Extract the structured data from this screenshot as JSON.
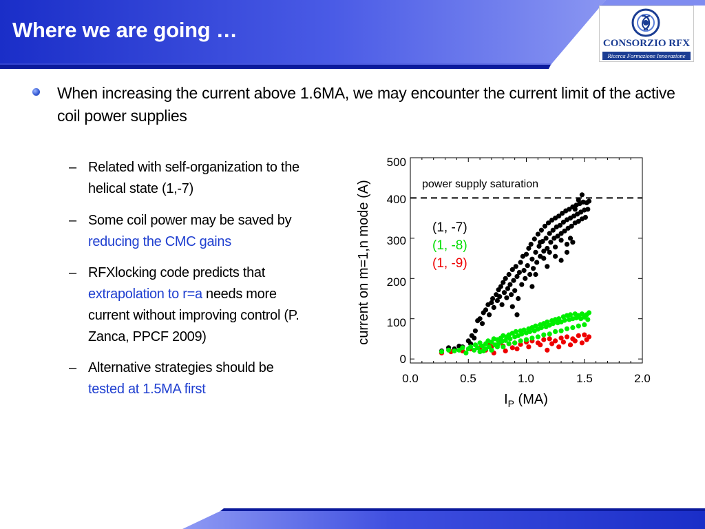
{
  "header": {
    "title": "Where we are going …",
    "logo": {
      "name": "CONSORZIO RFX",
      "tagline": "Ricerca Formazione Innovazione",
      "emblem_icon": "rfx-emblem-icon",
      "emblem_color": "#1b3d93"
    },
    "bar_colors": {
      "dark": "#1a2ec8",
      "light": "#7a86f0",
      "underline": "#0b1a9c"
    }
  },
  "content": {
    "main_bullet": "When increasing the current above 1.6MA, we may encounter the current limit of the active coil power supplies",
    "sub_bullets": [
      {
        "dash": "–",
        "segments": [
          {
            "text": "Related with self-organization to the helical state (1,-7)",
            "highlight": false
          }
        ]
      },
      {
        "dash": "–",
        "segments": [
          {
            "text": "Some coil power may be saved by ",
            "highlight": false
          },
          {
            "text": "reducing the CMC gains",
            "highlight": true
          }
        ]
      },
      {
        "dash": "–",
        "segments": [
          {
            "text": "RFXlocking code predicts that ",
            "highlight": false
          },
          {
            "text": "extrapolation to r=a",
            "highlight": true
          },
          {
            "text": " needs more current without improving control (P. Zanca, PPCF 2009)",
            "highlight": false
          }
        ]
      },
      {
        "dash": "–",
        "segments": [
          {
            "text": "Alternative strategies should be ",
            "highlight": false
          },
          {
            "text": "tested at 1.5MA first",
            "highlight": true
          }
        ]
      }
    ],
    "highlight_color": "#1f3fd0"
  },
  "chart_data": {
    "type": "scatter",
    "xlabel": "IP (MA)",
    "xlabel_main": "I",
    "xlabel_sub": "P",
    "xlabel_unit": " (MA)",
    "ylabel": "current on m=1,n mode (A)",
    "xlim": [
      0.0,
      2.0
    ],
    "ylim": [
      -10,
      500
    ],
    "x_ticks": [
      0.0,
      0.5,
      1.0,
      1.5,
      2.0
    ],
    "x_tick_labels": [
      "0.0",
      "0.5",
      "1.0",
      "1.5",
      "2.0"
    ],
    "y_ticks": [
      0,
      100,
      200,
      300,
      400,
      500
    ],
    "y_tick_labels": [
      "0",
      "100",
      "200",
      "300",
      "400",
      "500"
    ],
    "annotation": {
      "text": "power supply saturation",
      "y": 400,
      "line_style": "dashed"
    },
    "legend_placement": "upper-left",
    "series": [
      {
        "name": "(1, -7)",
        "color": "#000000",
        "points": [
          [
            0.27,
            20
          ],
          [
            0.33,
            28
          ],
          [
            0.38,
            25
          ],
          [
            0.42,
            32
          ],
          [
            0.45,
            30
          ],
          [
            0.5,
            45
          ],
          [
            0.52,
            38
          ],
          [
            0.53,
            58
          ],
          [
            0.55,
            52
          ],
          [
            0.56,
            70
          ],
          [
            0.58,
            95
          ],
          [
            0.6,
            100
          ],
          [
            0.62,
            88
          ],
          [
            0.63,
            115
          ],
          [
            0.65,
            122
          ],
          [
            0.67,
            135
          ],
          [
            0.68,
            110
          ],
          [
            0.7,
            140
          ],
          [
            0.71,
            150
          ],
          [
            0.72,
            128
          ],
          [
            0.74,
            160
          ],
          [
            0.75,
            145
          ],
          [
            0.76,
            172
          ],
          [
            0.77,
            155
          ],
          [
            0.78,
            180
          ],
          [
            0.79,
            135
          ],
          [
            0.8,
            190
          ],
          [
            0.81,
            165
          ],
          [
            0.82,
            200
          ],
          [
            0.83,
            152
          ],
          [
            0.84,
            175
          ],
          [
            0.85,
            210
          ],
          [
            0.86,
            185
          ],
          [
            0.87,
            160
          ],
          [
            0.88,
            222
          ],
          [
            0.89,
            195
          ],
          [
            0.9,
            170
          ],
          [
            0.91,
            230
          ],
          [
            0.92,
            205
          ],
          [
            0.93,
            150
          ],
          [
            0.94,
            215
          ],
          [
            0.95,
            240
          ],
          [
            0.96,
            185
          ],
          [
            0.97,
            255
          ],
          [
            0.98,
            220
          ],
          [
            0.99,
            200
          ],
          [
            1.0,
            260
          ],
          [
            1.01,
            232
          ],
          [
            1.02,
            275
          ],
          [
            1.03,
            210
          ],
          [
            1.04,
            285
          ],
          [
            1.05,
            248
          ],
          [
            1.06,
            225
          ],
          [
            1.07,
            298
          ],
          [
            1.08,
            265
          ],
          [
            1.09,
            240
          ],
          [
            1.1,
            310
          ],
          [
            1.11,
            280
          ],
          [
            1.12,
            255
          ],
          [
            1.13,
            320
          ],
          [
            1.14,
            292
          ],
          [
            1.15,
            268
          ],
          [
            1.16,
            330
          ],
          [
            1.17,
            300
          ],
          [
            1.18,
            275
          ],
          [
            1.19,
            338
          ],
          [
            1.2,
            312
          ],
          [
            1.21,
            290
          ],
          [
            1.22,
            345
          ],
          [
            1.23,
            320
          ],
          [
            1.24,
            300
          ],
          [
            1.25,
            350
          ],
          [
            1.26,
            328
          ],
          [
            1.27,
            305
          ],
          [
            1.28,
            355
          ],
          [
            1.29,
            332
          ],
          [
            1.3,
            312
          ],
          [
            1.31,
            362
          ],
          [
            1.32,
            340
          ],
          [
            1.33,
            318
          ],
          [
            1.34,
            368
          ],
          [
            1.35,
            346
          ],
          [
            1.36,
            325
          ],
          [
            1.37,
            372
          ],
          [
            1.38,
            350
          ],
          [
            1.39,
            330
          ],
          [
            1.4,
            378
          ],
          [
            1.41,
            355
          ],
          [
            1.42,
            338
          ],
          [
            1.43,
            382
          ],
          [
            1.44,
            360
          ],
          [
            1.45,
            342
          ],
          [
            1.46,
            386
          ],
          [
            1.47,
            365
          ],
          [
            1.48,
            348
          ],
          [
            1.49,
            390
          ],
          [
            1.5,
            370
          ],
          [
            1.51,
            352
          ],
          [
            1.52,
            388
          ],
          [
            1.53,
            372
          ],
          [
            1.54,
            392
          ],
          [
            1.48,
            408
          ],
          [
            1.45,
            395
          ],
          [
            1.42,
            372
          ],
          [
            1.38,
            300
          ],
          [
            1.35,
            285
          ],
          [
            1.3,
            295
          ],
          [
            1.25,
            278
          ],
          [
            1.2,
            265
          ],
          [
            1.15,
            250
          ],
          [
            1.12,
            290
          ],
          [
            1.08,
            210
          ],
          [
            1.05,
            180
          ],
          [
            1.25,
            255
          ],
          [
            1.3,
            245
          ],
          [
            1.35,
            265
          ],
          [
            1.4,
            290
          ],
          [
            1.18,
            230
          ],
          [
            0.88,
            130
          ],
          [
            0.92,
            110
          ]
        ]
      },
      {
        "name": "(1, -8)",
        "color": "#00ee00",
        "points": [
          [
            0.27,
            18
          ],
          [
            0.33,
            22
          ],
          [
            0.38,
            20
          ],
          [
            0.42,
            22
          ],
          [
            0.45,
            28
          ],
          [
            0.48,
            15
          ],
          [
            0.5,
            25
          ],
          [
            0.52,
            30
          ],
          [
            0.55,
            22
          ],
          [
            0.56,
            35
          ],
          [
            0.58,
            28
          ],
          [
            0.6,
            40
          ],
          [
            0.62,
            32
          ],
          [
            0.63,
            20
          ],
          [
            0.65,
            38
          ],
          [
            0.67,
            45
          ],
          [
            0.68,
            30
          ],
          [
            0.7,
            42
          ],
          [
            0.72,
            50
          ],
          [
            0.73,
            35
          ],
          [
            0.75,
            48
          ],
          [
            0.76,
            38
          ],
          [
            0.78,
            52
          ],
          [
            0.79,
            44
          ],
          [
            0.8,
            58
          ],
          [
            0.82,
            46
          ],
          [
            0.83,
            55
          ],
          [
            0.85,
            60
          ],
          [
            0.86,
            50
          ],
          [
            0.88,
            64
          ],
          [
            0.9,
            55
          ],
          [
            0.91,
            68
          ],
          [
            0.93,
            58
          ],
          [
            0.95,
            70
          ],
          [
            0.96,
            62
          ],
          [
            0.98,
            72
          ],
          [
            1.0,
            65
          ],
          [
            1.02,
            75
          ],
          [
            1.03,
            68
          ],
          [
            1.05,
            78
          ],
          [
            1.07,
            70
          ],
          [
            1.08,
            82
          ],
          [
            1.1,
            74
          ],
          [
            1.12,
            85
          ],
          [
            1.13,
            78
          ],
          [
            1.15,
            88
          ],
          [
            1.17,
            80
          ],
          [
            1.18,
            92
          ],
          [
            1.2,
            84
          ],
          [
            1.22,
            95
          ],
          [
            1.23,
            88
          ],
          [
            1.25,
            98
          ],
          [
            1.27,
            90
          ],
          [
            1.28,
            100
          ],
          [
            1.3,
            92
          ],
          [
            1.32,
            105
          ],
          [
            1.33,
            96
          ],
          [
            1.35,
            108
          ],
          [
            1.37,
            98
          ],
          [
            1.38,
            110
          ],
          [
            1.4,
            100
          ],
          [
            1.42,
            112
          ],
          [
            1.43,
            102
          ],
          [
            1.45,
            108
          ],
          [
            1.47,
            100
          ],
          [
            1.48,
            112
          ],
          [
            1.5,
            104
          ],
          [
            1.52,
            110
          ],
          [
            1.53,
            98
          ],
          [
            1.54,
            115
          ],
          [
            0.6,
            18
          ],
          [
            0.7,
            22
          ],
          [
            0.8,
            30
          ],
          [
            0.9,
            40
          ],
          [
            1.0,
            48
          ],
          [
            1.1,
            55
          ],
          [
            1.2,
            62
          ],
          [
            1.3,
            70
          ],
          [
            1.4,
            78
          ],
          [
            1.5,
            85
          ],
          [
            0.65,
            25
          ],
          [
            0.75,
            30
          ],
          [
            0.85,
            38
          ],
          [
            0.95,
            45
          ],
          [
            1.05,
            52
          ],
          [
            1.15,
            60
          ],
          [
            1.25,
            68
          ],
          [
            1.35,
            75
          ],
          [
            1.45,
            82
          ]
        ]
      },
      {
        "name": "(1, -9)",
        "color": "#ee0000",
        "points": [
          [
            0.27,
            15
          ],
          [
            0.35,
            18
          ],
          [
            0.45,
            20
          ],
          [
            0.52,
            25
          ],
          [
            0.6,
            28
          ],
          [
            0.65,
            22
          ],
          [
            0.7,
            30
          ],
          [
            0.75,
            35
          ],
          [
            0.8,
            32
          ],
          [
            0.85,
            38
          ],
          [
            0.9,
            40
          ],
          [
            0.95,
            36
          ],
          [
            1.0,
            42
          ],
          [
            1.05,
            45
          ],
          [
            1.1,
            40
          ],
          [
            1.15,
            48
          ],
          [
            1.2,
            50
          ],
          [
            1.25,
            45
          ],
          [
            1.3,
            52
          ],
          [
            1.35,
            55
          ],
          [
            1.4,
            50
          ],
          [
            1.45,
            58
          ],
          [
            1.5,
            60
          ],
          [
            1.54,
            55
          ],
          [
            0.72,
            15
          ],
          [
            0.82,
            20
          ],
          [
            0.92,
            25
          ],
          [
            1.02,
            30
          ],
          [
            1.12,
            35
          ],
          [
            1.22,
            38
          ],
          [
            1.32,
            42
          ],
          [
            1.42,
            45
          ],
          [
            1.52,
            48
          ],
          [
            1.18,
            22
          ],
          [
            1.28,
            30
          ],
          [
            1.38,
            35
          ],
          [
            1.48,
            40
          ],
          [
            0.68,
            40
          ],
          [
            0.78,
            42
          ],
          [
            0.88,
            28
          ]
        ]
      }
    ]
  }
}
